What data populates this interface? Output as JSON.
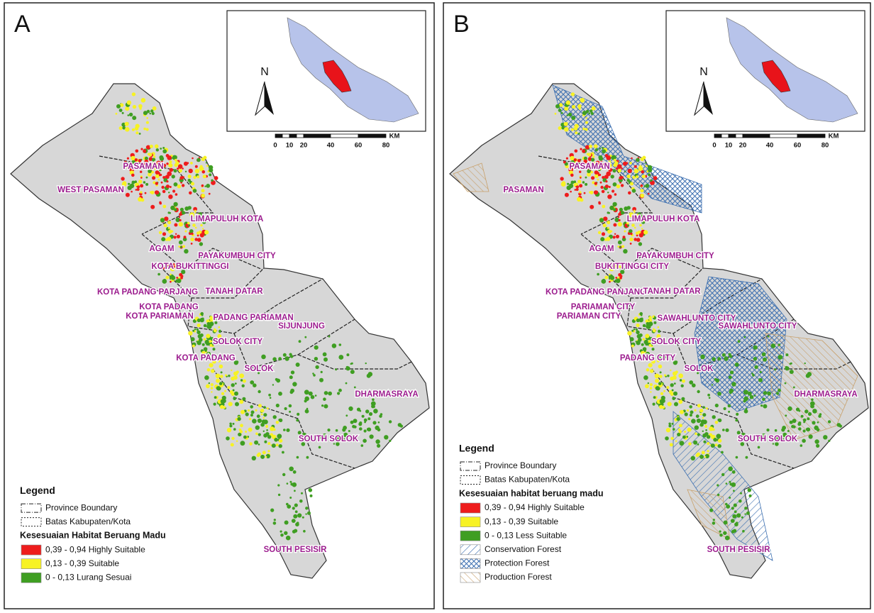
{
  "panels": [
    {
      "letter": "A",
      "inset": {
        "north": "N",
        "scale_unit": "KM",
        "scale_labels": [
          0,
          10,
          20,
          40,
          60,
          80
        ]
      },
      "regions": [
        "PASAMAN",
        "WEST PASAMAN",
        "LIMAPULUH KOTA",
        "AGAM",
        "PAYAKUMBUH CITY",
        "KOTA BUKITTINGGI",
        "KOTA PADANG PARJANG",
        "TANAH DATAR",
        "KOTA PADANG",
        "KOTA PARIAMAN",
        "PADANG PARIAMAN",
        "SIJUNJUNG",
        "SOLOK CITY",
        "KOTA PADANG",
        "SOLOK",
        "DHARMASRAYA",
        "SOUTH SOLOK",
        "SOUTH PESISIR"
      ],
      "legend": {
        "title": "Legend",
        "boundaries": [
          "Province Boundary",
          "Batas Kabupaten/Kota"
        ],
        "subtitle": "Kesesuaian Habitat Beruang Madu",
        "items": [
          "0,39 - 0,94 Highly Suitable",
          "0,13 - 0,39 Suitable",
          "0 - 0,13 Lurang Sesuai"
        ]
      }
    },
    {
      "letter": "B",
      "inset": {
        "north": "N",
        "scale_unit": "KM",
        "scale_labels": [
          0,
          10,
          20,
          40,
          60,
          80
        ]
      },
      "regions": [
        "PASAMAN",
        "PASAMAN",
        "LIMAPULUH KOTA",
        "AGAM",
        "PAYAKUMBUH CITY",
        "BUKITTINGGI CITY",
        "KOTA PADANG PANJANG",
        "TANAH DATAR",
        "PARIAMAN CITY",
        "PARIAMAN CITY",
        "SAWAHLUNTO CITY",
        "SAWAHLUNTO CITY",
        "SOLOK CITY",
        "PADANG CITY",
        "SOLOK",
        "DHARMASRAYA",
        "SOUTH SOLOK",
        "SOUTH PESISIR"
      ],
      "legend": {
        "title": "Legend",
        "boundaries": [
          "Province Boundary",
          "Batas Kabupaten/Kota"
        ],
        "subtitle": "Kesesuaian habitat beruang madu",
        "items": [
          "0,39 - 0,94 Highly Suitable",
          "0,13 - 0,39 Suitable",
          "0 - 0,13 Less Suitable",
          "Conservation Forest",
          "Protection Forest",
          "Production Forest"
        ]
      }
    }
  ]
}
